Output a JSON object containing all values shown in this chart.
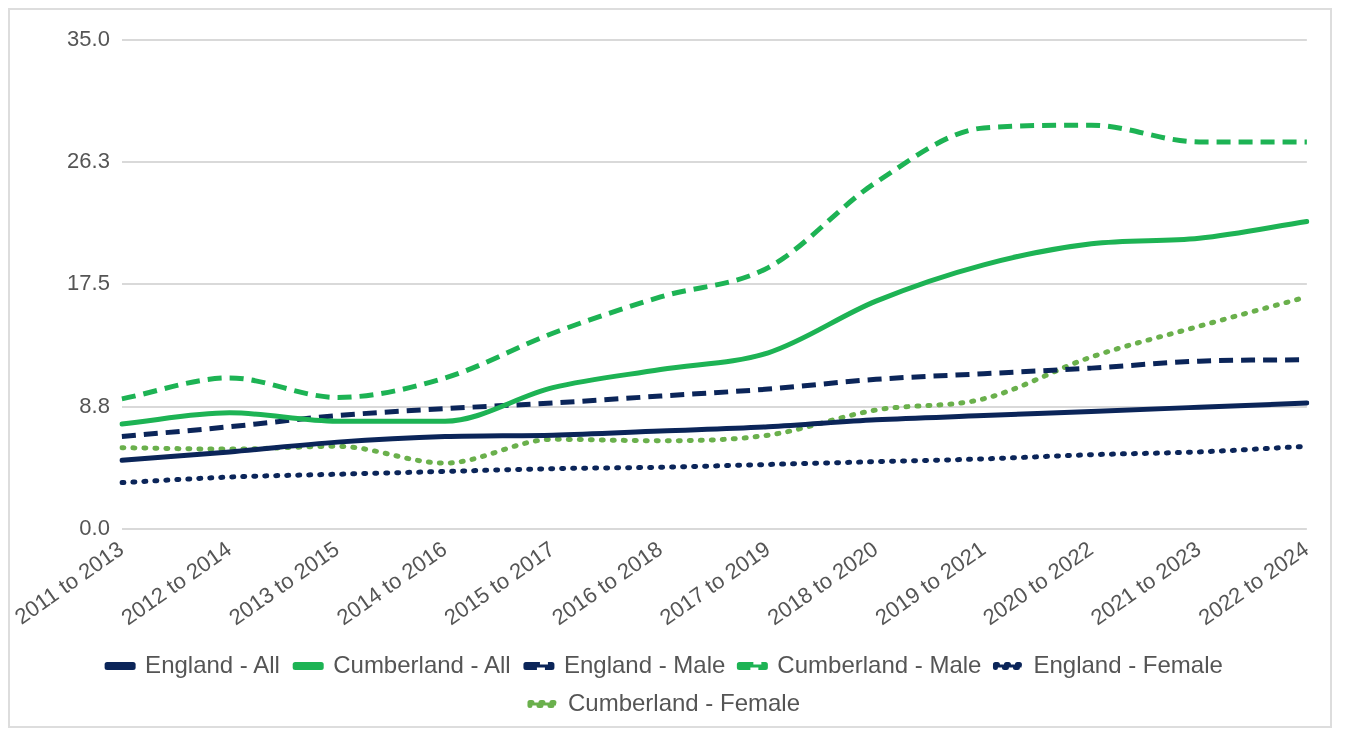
{
  "chart_data": {
    "type": "line",
    "categories": [
      "2011 to 2013",
      "2012 to 2014",
      "2013 to 2015",
      "2014 to 2016",
      "2015 to 2017",
      "2016 to 2018",
      "2017 to 2019",
      "2018 to 2020",
      "2019 to 2021",
      "2020 to 2022",
      "2021 to 2023",
      "2022 to 2024"
    ],
    "series": [
      {
        "name": "England - All",
        "color": "#0b2559",
        "line_style": "solid",
        "values": [
          4.9,
          5.5,
          6.2,
          6.6,
          6.7,
          7.0,
          7.3,
          7.8,
          8.1,
          8.4,
          8.7,
          9.0
        ]
      },
      {
        "name": "Cumberland - All",
        "color": "#1db354",
        "line_style": "solid",
        "values": [
          7.5,
          8.3,
          7.7,
          7.7,
          10.1,
          11.4,
          12.6,
          16.3,
          18.9,
          20.4,
          20.8,
          22.0
        ]
      },
      {
        "name": "England - Male",
        "color": "#0b2559",
        "line_style": "dashed",
        "values": [
          6.6,
          7.3,
          8.1,
          8.6,
          9.0,
          9.5,
          10.0,
          10.7,
          11.1,
          11.5,
          12.0,
          12.1
        ]
      },
      {
        "name": "Cumberland - Male",
        "color": "#1db354",
        "line_style": "dashed",
        "values": [
          9.3,
          10.8,
          9.4,
          10.8,
          14.0,
          16.6,
          18.7,
          24.8,
          28.7,
          28.9,
          27.7,
          27.7
        ]
      },
      {
        "name": "England - Female",
        "color": "#0b2559",
        "line_style": "dotted",
        "values": [
          3.3,
          3.7,
          3.9,
          4.1,
          4.3,
          4.4,
          4.6,
          4.8,
          5.0,
          5.3,
          5.5,
          5.9
        ]
      },
      {
        "name": "Cumberland - Female",
        "color": "#6ab04c",
        "line_style": "dotted",
        "values": [
          5.8,
          5.7,
          5.9,
          4.7,
          6.4,
          6.3,
          6.7,
          8.5,
          9.3,
          12.3,
          14.5,
          16.6
        ]
      }
    ],
    "ylim": [
      0,
      35
    ],
    "yticks": [
      {
        "value": 0,
        "label": "0.0"
      },
      {
        "value": 8.75,
        "label": "8.8"
      },
      {
        "value": 17.5,
        "label": "17.5"
      },
      {
        "value": 26.25,
        "label": "26.3"
      },
      {
        "value": 35,
        "label": "35.0"
      }
    ],
    "grid": "y",
    "legend": "bottom",
    "marker": "none"
  }
}
